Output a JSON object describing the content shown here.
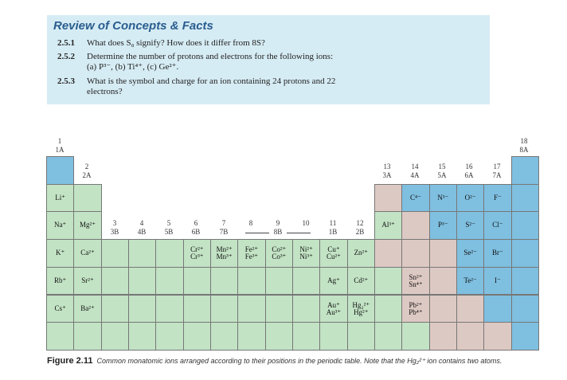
{
  "review": {
    "title": "Review of Concepts & Facts",
    "questions": [
      {
        "num": "2.5.1",
        "text": "What does S₈ signify? How does it differ from 8S?"
      },
      {
        "num": "2.5.2",
        "text": "Determine the number of protons and electrons for the following ions:",
        "text2": "(a) P³⁻, (b) Ti⁴⁺, (c) Ge²⁺."
      },
      {
        "num": "2.5.3",
        "text": "What is the symbol and charge for an ion containing 24 protons and 22",
        "text2": "electrons?"
      }
    ]
  },
  "groups": {
    "g1": [
      "1",
      "1A"
    ],
    "g2": [
      "2",
      "2A"
    ],
    "g3": [
      "3",
      "3B"
    ],
    "g4": [
      "4",
      "4B"
    ],
    "g5": [
      "5",
      "5B"
    ],
    "g6": [
      "6",
      "6B"
    ],
    "g7": [
      "7",
      "7B"
    ],
    "g8": [
      "8",
      ""
    ],
    "g9": [
      "9",
      "8B"
    ],
    "g10": [
      "10",
      ""
    ],
    "g11": [
      "11",
      "1B"
    ],
    "g12": [
      "12",
      "2B"
    ],
    "g13": [
      "13",
      "3A"
    ],
    "g14": [
      "14",
      "4A"
    ],
    "g15": [
      "15",
      "5A"
    ],
    "g16": [
      "16",
      "6A"
    ],
    "g17": [
      "17",
      "7A"
    ],
    "g18": [
      "18",
      "8A"
    ]
  },
  "ions": {
    "li": "Li⁺",
    "na": "Na⁺",
    "k": "K⁺",
    "rb": "Rb⁺",
    "cs": "Cs⁺",
    "mg": "Mg²⁺",
    "ca": "Ca²⁺",
    "sr": "Sr²⁺",
    "ba": "Ba²⁺",
    "cr": "Cr²⁺\nCr³⁺",
    "mn": "Mn²⁺\nMn³⁺",
    "fe": "Fe²⁺\nFe³⁺",
    "co": "Co²⁺\nCo³⁺",
    "ni": "Ni²⁺\nNi³⁺",
    "cu": "Cu⁺\nCu²⁺",
    "zn": "Zn²⁺",
    "ag": "Ag⁺",
    "cd": "Cd²⁺",
    "au": "Au⁺\nAu³⁺",
    "hg": "Hg₂²⁺\nHg²⁺",
    "al": "Al³⁺",
    "c": "C⁴⁻",
    "n": "N³⁻",
    "o": "O²⁻",
    "f": "F⁻",
    "p": "P³⁻",
    "s": "S²⁻",
    "cl": "Cl⁻",
    "se": "Se²⁻",
    "br": "Br⁻",
    "sn": "Sn²⁺\nSn⁴⁺",
    "te": "Te²⁻",
    "i": "I⁻",
    "pb": "Pb²⁺\nPb⁴⁺"
  },
  "colors": {
    "transition_green": "#c2e3c4",
    "blue": "#7fbfe0",
    "pink": "#ddc9c3"
  },
  "caption": {
    "fig": "Figure 2.11",
    "text": "Common monatomic ions arranged according to their positions in the periodic table. Note that the Hg₂²⁺ ion contains two atoms."
  }
}
